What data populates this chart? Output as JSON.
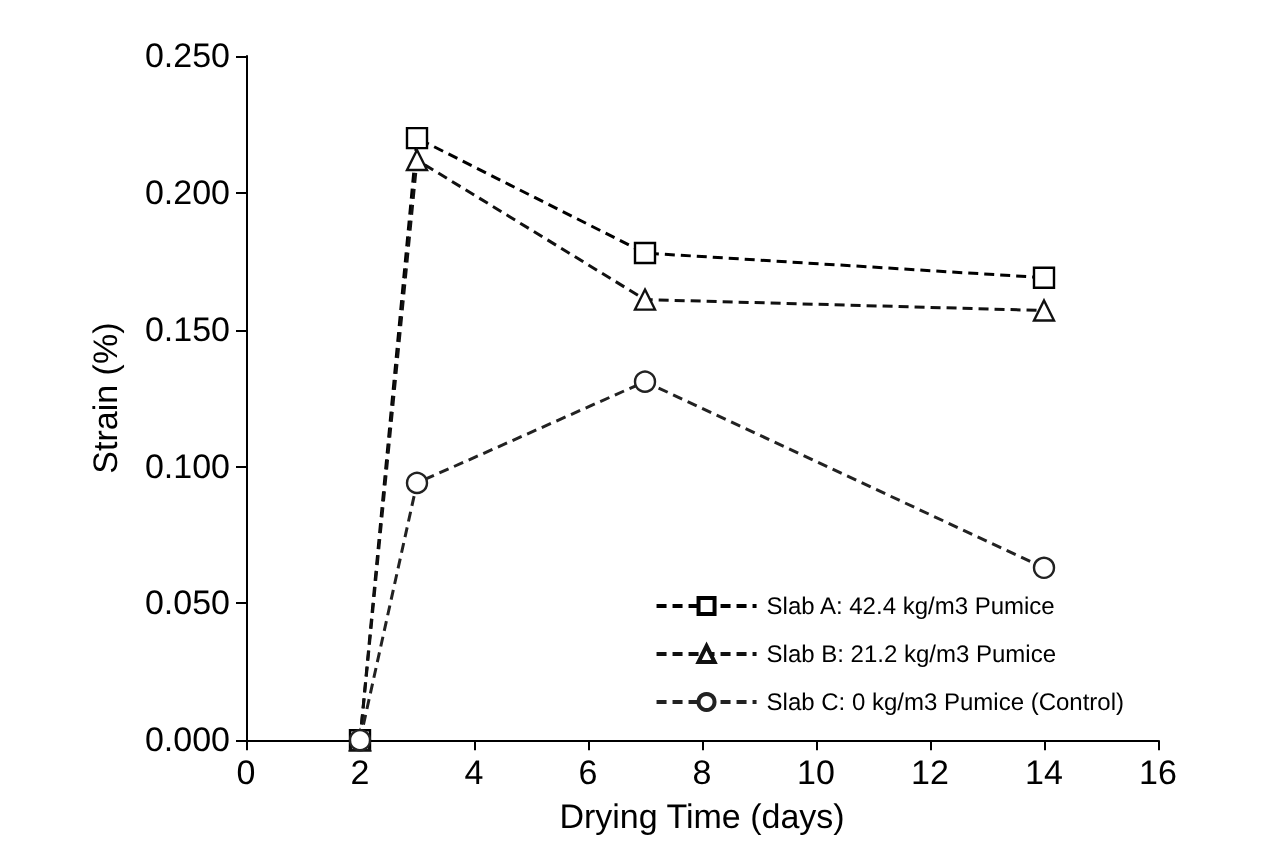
{
  "chart_data": {
    "type": "line",
    "xlabel": "Drying Time (days)",
    "ylabel": "Strain (%)",
    "xlim": [
      0,
      16
    ],
    "xticks": [
      0,
      2,
      4,
      6,
      8,
      10,
      12,
      14,
      16
    ],
    "ylim": [
      0,
      0.25
    ],
    "yticks": [
      {
        "value": 0,
        "label": "0.000"
      },
      {
        "value": 0.05,
        "label": "0.050"
      },
      {
        "value": 0.1,
        "label": "0.100"
      },
      {
        "value": 0.15,
        "label": "0.150"
      },
      {
        "value": 0.2,
        "label": "0.200"
      },
      {
        "value": 0.25,
        "label": "0.250"
      }
    ],
    "x": [
      2,
      3,
      7,
      14
    ],
    "grid": false,
    "legend": "bottom right",
    "series": [
      {
        "name": "Slab A: 42.4 kg/m3 Pumice",
        "color": "#000000",
        "marker": "square",
        "line_style": "dashed",
        "values": [
          0,
          0.22,
          0.178,
          0.169
        ]
      },
      {
        "name": "Slab B: 21.2 kg/m3 Pumice",
        "color": "#111111",
        "marker": "triangle",
        "line_style": "dashed",
        "values": [
          0,
          0.212,
          0.161,
          0.157
        ]
      },
      {
        "name": "Slab C: 0 kg/m3 Pumice (Control)",
        "color": "#222222",
        "marker": "circle",
        "line_style": "dashed",
        "values": [
          0,
          0.094,
          0.131,
          0.063
        ]
      }
    ]
  }
}
